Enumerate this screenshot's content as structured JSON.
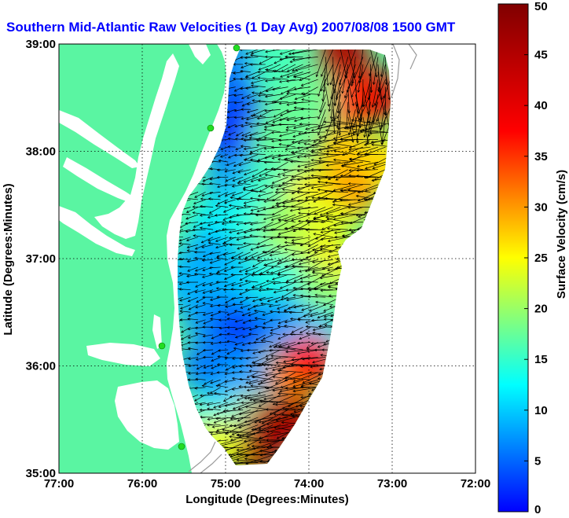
{
  "chart_data": {
    "type": "heatmap",
    "title": "Southern Mid-Atlantic Raw Velocities (1 Day Avg) 2007/08/08 1500 GMT",
    "xlabel": "Longitude (Degrees:Minutes)",
    "ylabel": "Latitude (Degrees:Minutes)",
    "x_ticks": [
      "77:00",
      "76:00",
      "75:00",
      "74:00",
      "73:00",
      "72:00"
    ],
    "y_ticks": [
      "39:00",
      "38:00",
      "37:00",
      "36:00",
      "35:00"
    ],
    "xlim": [
      -77,
      -72
    ],
    "ylim": [
      35,
      39
    ],
    "grid": true,
    "colorbar": {
      "label": "Surface Velocity (cm/s)",
      "ticks": [
        "0",
        "5",
        "10",
        "15",
        "20",
        "25",
        "30",
        "35",
        "40",
        "45",
        "50"
      ],
      "range": [
        0,
        50
      ],
      "colormap": "jet"
    },
    "field_points": [
      {
        "lon": -74.85,
        "lat": 38.8,
        "speed": 12
      },
      {
        "lon": -74.4,
        "lat": 38.8,
        "speed": 22
      },
      {
        "lon": -73.6,
        "lat": 38.9,
        "speed": 48
      },
      {
        "lon": -73.2,
        "lat": 38.5,
        "speed": 46
      },
      {
        "lon": -73.5,
        "lat": 38.5,
        "speed": 42
      },
      {
        "lon": -74.0,
        "lat": 38.5,
        "speed": 24
      },
      {
        "lon": -74.9,
        "lat": 38.4,
        "speed": 10
      },
      {
        "lon": -74.9,
        "lat": 38.1,
        "speed": 8
      },
      {
        "lon": -74.4,
        "lat": 38.1,
        "speed": 24
      },
      {
        "lon": -73.6,
        "lat": 38.0,
        "speed": 34
      },
      {
        "lon": -73.1,
        "lat": 37.9,
        "speed": 33
      },
      {
        "lon": -74.9,
        "lat": 37.7,
        "speed": 14
      },
      {
        "lon": -74.5,
        "lat": 37.7,
        "speed": 22
      },
      {
        "lon": -74.0,
        "lat": 37.6,
        "speed": 32
      },
      {
        "lon": -73.5,
        "lat": 37.6,
        "speed": 36
      },
      {
        "lon": -75.1,
        "lat": 37.3,
        "speed": 18
      },
      {
        "lon": -74.7,
        "lat": 37.4,
        "speed": 20
      },
      {
        "lon": -74.3,
        "lat": 37.35,
        "speed": 26
      },
      {
        "lon": -73.8,
        "lat": 37.35,
        "speed": 30
      },
      {
        "lon": -74.2,
        "lat": 37.0,
        "speed": 28
      },
      {
        "lon": -73.7,
        "lat": 36.9,
        "speed": 32
      },
      {
        "lon": -73.9,
        "lat": 36.7,
        "speed": 26
      },
      {
        "lon": -75.2,
        "lat": 37.0,
        "speed": 14
      },
      {
        "lon": -74.8,
        "lat": 36.8,
        "speed": 16
      },
      {
        "lon": -74.4,
        "lat": 36.8,
        "speed": 20
      },
      {
        "lon": -75.2,
        "lat": 36.5,
        "speed": 13
      },
      {
        "lon": -74.8,
        "lat": 36.35,
        "speed": 9
      },
      {
        "lon": -74.3,
        "lat": 36.4,
        "speed": 13
      },
      {
        "lon": -73.95,
        "lat": 36.3,
        "speed": 16
      },
      {
        "lon": -75.2,
        "lat": 36.0,
        "speed": 12
      },
      {
        "lon": -74.8,
        "lat": 35.9,
        "speed": 14
      },
      {
        "lon": -74.2,
        "lat": 35.9,
        "speed": 36
      },
      {
        "lon": -74.0,
        "lat": 36.05,
        "speed": 44
      },
      {
        "lon": -74.8,
        "lat": 35.5,
        "speed": 30
      },
      {
        "lon": -74.5,
        "lat": 35.4,
        "speed": 47
      },
      {
        "lon": -74.2,
        "lat": 35.5,
        "speed": 48
      },
      {
        "lon": -74.7,
        "lat": 35.2,
        "speed": 48
      },
      {
        "lon": -75.1,
        "lat": 35.5,
        "speed": 18
      },
      {
        "lon": -75.1,
        "lat": 35.3,
        "speed": 30
      },
      {
        "lon": -75.45,
        "lat": 36.8,
        "speed": 15
      }
    ],
    "mean_flow": {
      "direction_deg_from_east": 190
    }
  },
  "colors": {
    "title": "#0000ff",
    "land": "#5af5a2",
    "text": "#000000",
    "grid": "#000000",
    "vector": "#000000",
    "site_marker": "#00ff00"
  }
}
